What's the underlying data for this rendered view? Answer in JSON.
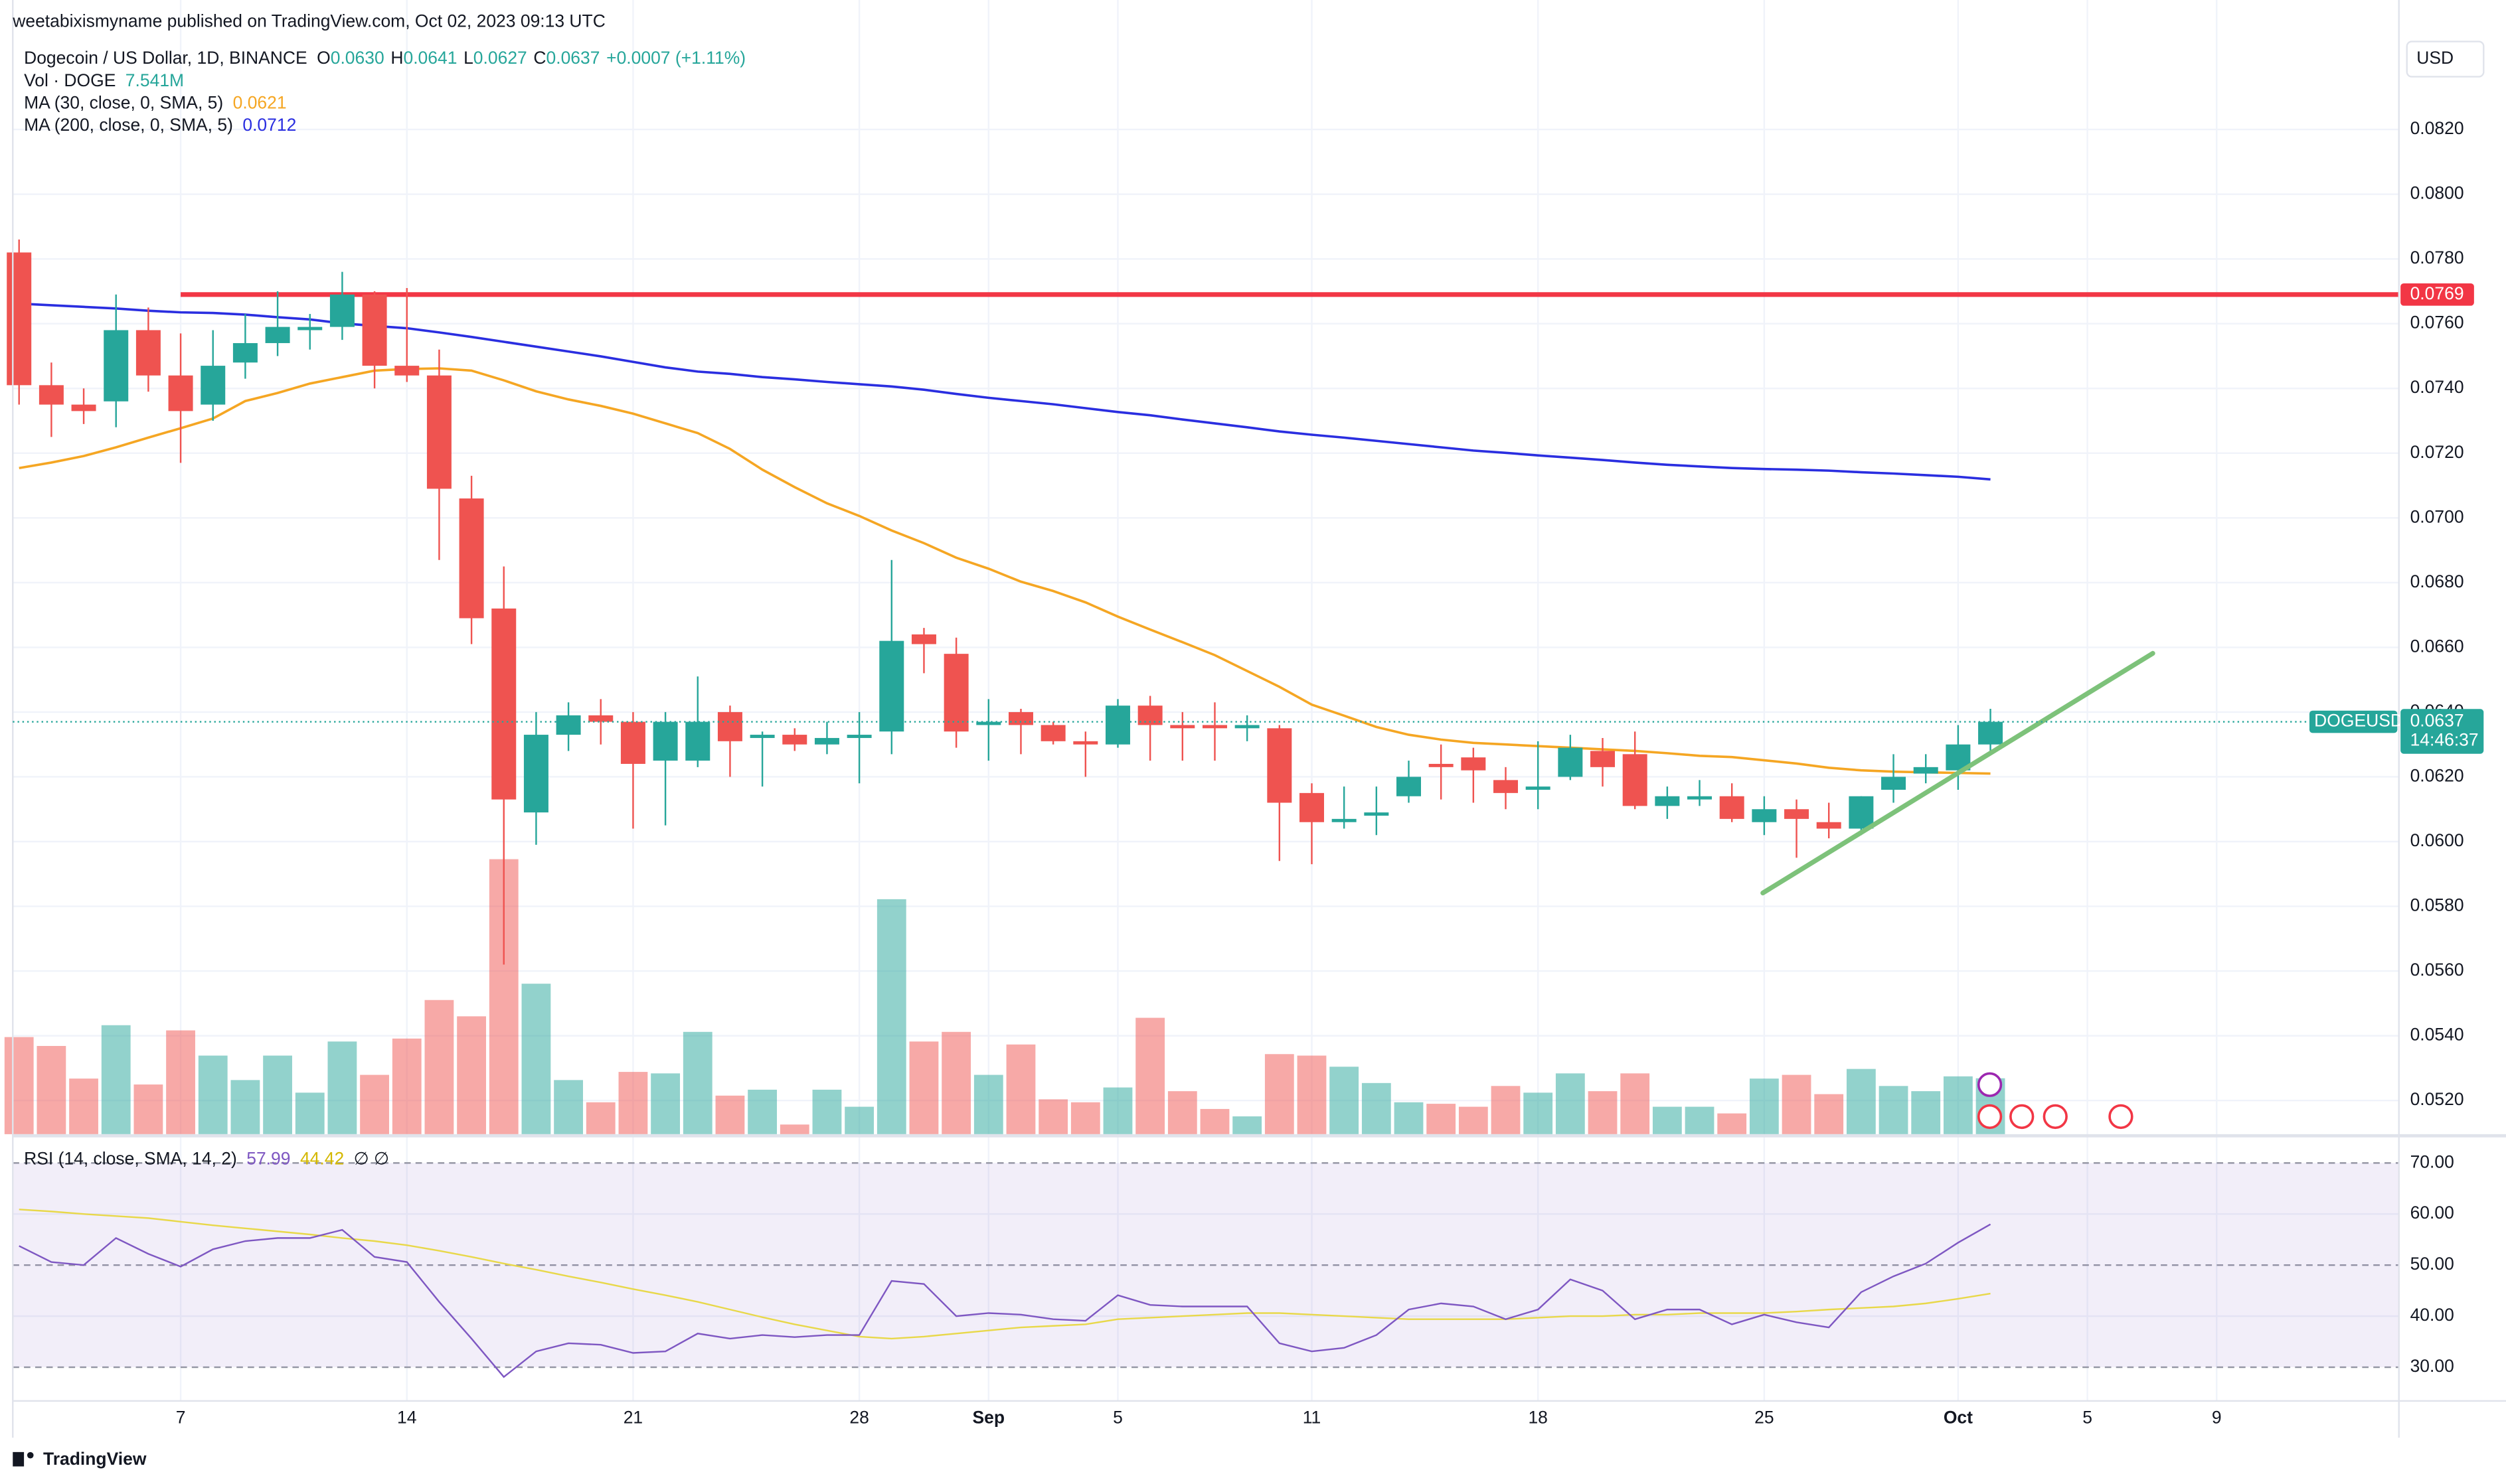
{
  "chart_data": {
    "type": "candlestick",
    "published": "weetabixismyname published on TradingView.com, Oct 02, 2023 09:13 UTC",
    "title": "Dogecoin / US Dollar, 1D, BINANCE",
    "ohlc": [
      {
        "key": "O",
        "value": "0.0630"
      },
      {
        "key": "H",
        "value": "0.0641"
      },
      {
        "key": "L",
        "value": "0.0627"
      },
      {
        "key": "C",
        "value": "0.0637"
      }
    ],
    "change": "+0.0007 (+1.11%)",
    "currency": "USD",
    "brand": "TradingView",
    "up_color": "#26a69a",
    "down_color": "#ef5350",
    "open": [
      0.0782,
      0.0741,
      0.0735,
      0.0736,
      0.0758,
      0.0744,
      0.0735,
      0.0748,
      0.0754,
      0.0758,
      0.0759,
      0.0769,
      0.0747,
      0.0744,
      0.0706,
      0.0672,
      0.0609,
      0.0633,
      0.0639,
      0.0637,
      0.0625,
      0.0625,
      0.064,
      0.0632,
      0.0633,
      0.063,
      0.0632,
      0.0634,
      0.0664,
      0.0658,
      0.0636,
      0.064,
      0.0636,
      0.0631,
      0.063,
      0.0642,
      0.0636,
      0.0636,
      0.0635,
      0.0635,
      0.0615,
      0.0606,
      0.0608,
      0.0614,
      0.0624,
      0.0626,
      0.0619,
      0.0616,
      0.062,
      0.0628,
      0.0627,
      0.0611,
      0.0613,
      0.0614,
      0.0606,
      0.061,
      0.0606,
      0.0604,
      0.0616,
      0.0621,
      0.0622,
      0.063
    ],
    "high": [
      0.0786,
      0.0748,
      0.074,
      0.0769,
      0.0765,
      0.0757,
      0.0758,
      0.0763,
      0.077,
      0.0763,
      0.0776,
      0.077,
      0.0771,
      0.0752,
      0.0713,
      0.0685,
      0.064,
      0.0643,
      0.0644,
      0.064,
      0.064,
      0.0651,
      0.0642,
      0.0634,
      0.0635,
      0.0637,
      0.064,
      0.0687,
      0.0666,
      0.0663,
      0.0644,
      0.0641,
      0.0637,
      0.0634,
      0.0644,
      0.0645,
      0.064,
      0.0643,
      0.0639,
      0.0636,
      0.0618,
      0.0617,
      0.0617,
      0.0625,
      0.063,
      0.0629,
      0.0623,
      0.0631,
      0.0633,
      0.0632,
      0.0634,
      0.0617,
      0.0619,
      0.0618,
      0.0614,
      0.0613,
      0.0612,
      0.0614,
      0.0627,
      0.0627,
      0.0636,
      0.0641
    ],
    "low": [
      0.0735,
      0.0725,
      0.0729,
      0.0728,
      0.0739,
      0.0717,
      0.073,
      0.0743,
      0.075,
      0.0752,
      0.0755,
      0.074,
      0.0742,
      0.0687,
      0.0661,
      0.0562,
      0.0599,
      0.0628,
      0.063,
      0.0604,
      0.0605,
      0.0623,
      0.062,
      0.0617,
      0.0628,
      0.0627,
      0.0618,
      0.0627,
      0.0652,
      0.0629,
      0.0625,
      0.0627,
      0.063,
      0.062,
      0.0629,
      0.0625,
      0.0625,
      0.0625,
      0.0631,
      0.0594,
      0.0593,
      0.0604,
      0.0602,
      0.0612,
      0.0613,
      0.0612,
      0.061,
      0.061,
      0.0619,
      0.0617,
      0.061,
      0.0607,
      0.0611,
      0.0606,
      0.0602,
      0.0595,
      0.0601,
      0.0602,
      0.0612,
      0.0618,
      0.0616,
      0.0627
    ],
    "close": [
      0.0741,
      0.0735,
      0.0733,
      0.0758,
      0.0744,
      0.0733,
      0.0747,
      0.0754,
      0.0759,
      0.0759,
      0.0769,
      0.0747,
      0.0744,
      0.0709,
      0.0669,
      0.0613,
      0.0633,
      0.0639,
      0.0637,
      0.0624,
      0.0637,
      0.0637,
      0.0631,
      0.0633,
      0.063,
      0.0632,
      0.0633,
      0.0662,
      0.0661,
      0.0634,
      0.0637,
      0.0636,
      0.0631,
      0.063,
      0.0642,
      0.0636,
      0.0635,
      0.0635,
      0.0636,
      0.0612,
      0.0606,
      0.0607,
      0.0609,
      0.062,
      0.0623,
      0.0622,
      0.0615,
      0.0617,
      0.0629,
      0.0623,
      0.0611,
      0.0614,
      0.0614,
      0.0607,
      0.061,
      0.0607,
      0.0604,
      0.0614,
      0.062,
      0.0623,
      0.063,
      0.0637
    ],
    "volume": {
      "name": "Vol · DOGE",
      "value_label": "7.541M",
      "values": [
        13.1,
        11.9,
        7.5,
        14.7,
        6.7,
        14.0,
        10.6,
        7.3,
        10.6,
        5.6,
        12.5,
        8.0,
        12.9,
        18.1,
        15.9,
        37.1,
        20.3,
        7.3,
        4.3,
        8.4,
        8.2,
        13.8,
        5.2,
        6.0,
        1.3,
        6.0,
        3.7,
        31.7,
        12.5,
        13.8,
        8.0,
        12.1,
        4.7,
        4.3,
        6.3,
        15.7,
        5.8,
        3.4,
        2.4,
        10.8,
        10.6,
        9.1,
        6.9,
        4.3,
        4.1,
        3.7,
        6.5,
        5.6,
        8.2,
        5.8,
        8.2,
        3.7,
        3.7,
        2.8,
        7.5,
        8.0,
        5.4,
        8.8,
        6.5,
        5.8,
        7.8,
        7.541
      ]
    },
    "series": [
      {
        "name": "MA (30, close, 0, SMA, 5)",
        "color": "#f5a623",
        "value_label": "0.0621",
        "values": [
          0.07154,
          0.07171,
          0.07191,
          0.07218,
          0.07248,
          0.07277,
          0.07307,
          0.07361,
          0.07386,
          0.07415,
          0.07435,
          0.07455,
          0.0746,
          0.07462,
          0.07455,
          0.07425,
          0.07391,
          0.07366,
          0.07346,
          0.07322,
          0.07292,
          0.07262,
          0.07213,
          0.07149,
          0.07095,
          0.07045,
          0.07006,
          0.06961,
          0.06922,
          0.06877,
          0.06843,
          0.06803,
          0.06774,
          0.06739,
          0.06695,
          0.06655,
          0.06616,
          0.06576,
          0.06527,
          0.06478,
          0.06423,
          0.06389,
          0.06354,
          0.0633,
          0.06315,
          0.06305,
          0.063,
          0.06295,
          0.0629,
          0.06285,
          0.0628,
          0.06273,
          0.06265,
          0.06261,
          0.06251,
          0.06241,
          0.06228,
          0.0622,
          0.06216,
          0.06214,
          0.06212,
          0.0621
        ]
      },
      {
        "name": "MA (200, close, 0, SMA, 5)",
        "color": "#2a2ee0",
        "value_label": "0.0712",
        "values": [
          0.07662,
          0.07657,
          0.07652,
          0.07647,
          0.0764,
          0.07635,
          0.07633,
          0.07628,
          0.0762,
          0.07613,
          0.07601,
          0.07593,
          0.07586,
          0.07573,
          0.07559,
          0.07544,
          0.07529,
          0.07514,
          0.07499,
          0.07482,
          0.07465,
          0.07452,
          0.07445,
          0.07435,
          0.07428,
          0.0742,
          0.07413,
          0.07406,
          0.07396,
          0.07383,
          0.07371,
          0.07361,
          0.07351,
          0.07339,
          0.07327,
          0.07317,
          0.07304,
          0.07292,
          0.0728,
          0.07267,
          0.07257,
          0.07248,
          0.07238,
          0.07228,
          0.07218,
          0.07208,
          0.07201,
          0.07193,
          0.07186,
          0.07179,
          0.07171,
          0.07164,
          0.07159,
          0.07154,
          0.07151,
          0.07149,
          0.07146,
          0.07141,
          0.07137,
          0.07132,
          0.07127,
          0.07119
        ]
      }
    ],
    "resistance": {
      "value": 0.0769,
      "label": "0.0769",
      "color": "#f23645"
    },
    "price_tag": {
      "name": "DOGEUSD",
      "value": 0.0637,
      "label": "0.0637",
      "countdown": "14:46:37",
      "color": "#26a69a"
    },
    "ylim": [
      0.05096,
      0.086
    ],
    "yticks": [
      {
        "value": 0.052,
        "label": "0.0520"
      },
      {
        "value": 0.054,
        "label": "0.0540"
      },
      {
        "value": 0.056,
        "label": "0.0560"
      },
      {
        "value": 0.058,
        "label": "0.0580"
      },
      {
        "value": 0.06,
        "label": "0.0600"
      },
      {
        "value": 0.062,
        "label": "0.0620"
      },
      {
        "value": 0.064,
        "label": "0.0640"
      },
      {
        "value": 0.066,
        "label": "0.0660"
      },
      {
        "value": 0.068,
        "label": "0.0680"
      },
      {
        "value": 0.07,
        "label": "0.0700"
      },
      {
        "value": 0.072,
        "label": "0.0720"
      },
      {
        "value": 0.074,
        "label": "0.0740"
      },
      {
        "value": 0.076,
        "label": "0.0760"
      },
      {
        "value": 0.078,
        "label": "0.0780"
      },
      {
        "value": 0.08,
        "label": "0.0800"
      },
      {
        "value": 0.082,
        "label": "0.0820"
      }
    ],
    "xlim": [
      -0.59,
      73.64
    ],
    "xticks": [
      {
        "value": 5,
        "label": "7"
      },
      {
        "value": 12,
        "label": "14"
      },
      {
        "value": 19,
        "label": "21"
      },
      {
        "value": 26,
        "label": "28"
      },
      {
        "value": 30,
        "label": "Sep"
      },
      {
        "value": 34,
        "label": "5"
      },
      {
        "value": 40,
        "label": "11"
      },
      {
        "value": 47,
        "label": "18"
      },
      {
        "value": 54,
        "label": "25"
      },
      {
        "value": 60,
        "label": "Oct"
      },
      {
        "value": 64,
        "label": "5"
      },
      {
        "value": 68,
        "label": "9"
      }
    ],
    "grid": true,
    "rsi": {
      "name": "RSI (14, close, SMA, 14, 2)",
      "extra": "∅ ∅",
      "band": [
        30,
        70
      ],
      "band_color": "#7e57c2",
      "ylim": [
        23.4,
        74.7
      ],
      "yticks": [
        {
          "value": 70,
          "label": "70.00"
        },
        {
          "value": 60,
          "label": "60.00"
        },
        {
          "value": 50,
          "label": "50.00"
        },
        {
          "value": 40,
          "label": "40.00"
        },
        {
          "value": 30,
          "label": "30.00"
        }
      ],
      "series": [
        {
          "color": "#7e57c2",
          "value_label": "57.99",
          "values": [
            53.75,
            50.6,
            50.0,
            55.3,
            52.2,
            49.7,
            53.1,
            54.7,
            55.3,
            55.3,
            56.9,
            51.6,
            50.6,
            42.8,
            35.6,
            28.1,
            33.1,
            34.7,
            34.4,
            32.8,
            33.1,
            36.6,
            35.6,
            36.3,
            35.9,
            36.3,
            36.3,
            46.9,
            46.3,
            40.0,
            40.6,
            40.3,
            39.4,
            39.1,
            44.1,
            42.2,
            41.9,
            41.9,
            41.9,
            34.7,
            33.1,
            33.8,
            36.3,
            41.3,
            42.5,
            41.9,
            39.4,
            41.3,
            47.2,
            45.0,
            39.4,
            41.3,
            41.3,
            38.4,
            40.3,
            38.8,
            37.8,
            44.7,
            47.8,
            50.3,
            54.4,
            57.99
          ]
        },
        {
          "color": "#e8d84a",
          "value_label": "44.42",
          "values": [
            60.9,
            60.5,
            60.0,
            59.6,
            59.2,
            58.5,
            57.8,
            57.2,
            56.6,
            56.0,
            55.3,
            54.7,
            53.9,
            52.8,
            51.6,
            50.3,
            49.1,
            47.8,
            46.6,
            45.3,
            44.1,
            42.8,
            41.3,
            39.8,
            38.4,
            37.2,
            36.0,
            35.6,
            36.0,
            36.6,
            37.2,
            37.8,
            38.1,
            38.4,
            39.4,
            39.7,
            40.0,
            40.3,
            40.6,
            40.6,
            40.3,
            40.0,
            39.7,
            39.4,
            39.4,
            39.4,
            39.4,
            39.7,
            40.0,
            40.0,
            40.3,
            40.3,
            40.6,
            40.6,
            40.6,
            40.9,
            41.3,
            41.6,
            41.9,
            42.5,
            43.4,
            44.42
          ]
        }
      ]
    }
  }
}
